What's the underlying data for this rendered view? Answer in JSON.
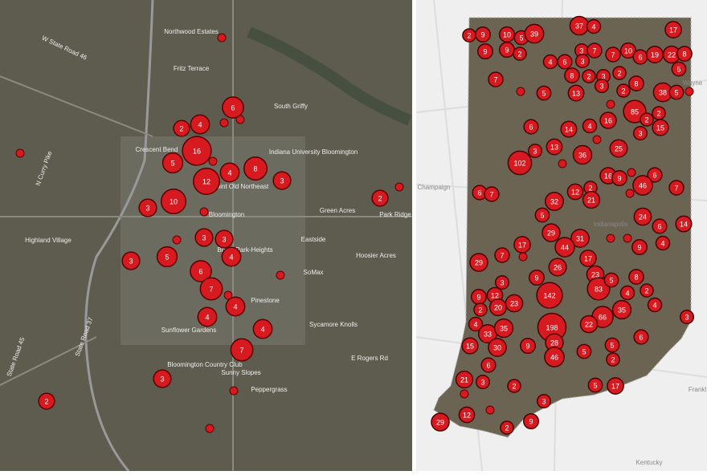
{
  "left_map": {
    "places": [
      "Northwood Estates",
      "Fritz Terrace",
      "South Griffy",
      "Indiana University Bloomington",
      "Crescent Bend",
      "High Point Old Northeast",
      "Bloomington",
      "Green Acres",
      "Park Ridge",
      "Highland Village",
      "Bryan Park-Heights",
      "Eastside",
      "Hoosier Acres",
      "SoMax",
      "Pinestone",
      "Sycamore Knolls",
      "Sunflower Gardens",
      "Bloomington Country Club",
      "E Rogers Rd",
      "Sunny Slopes",
      "Peppergrass",
      "W State Road 46",
      "State Road 37",
      "N Curry Pike",
      "State Road 45"
    ],
    "clusters": [
      6,
      2,
      4,
      16,
      5,
      4,
      8,
      12,
      3,
      10,
      3,
      2,
      3,
      3,
      5,
      3,
      4,
      6,
      7,
      4,
      4,
      4,
      7,
      3,
      2
    ]
  },
  "right_map": {
    "places": [
      "Indianapolis",
      "Champaign",
      "Wayne",
      "Frankl",
      "Kentucky"
    ],
    "clusters": [
      2,
      9,
      10,
      5,
      39,
      37,
      4,
      17,
      9,
      9,
      2,
      3,
      7,
      7,
      10,
      6,
      19,
      22,
      8,
      4,
      6,
      3,
      5,
      8,
      2,
      3,
      2,
      7,
      5,
      13,
      3,
      2,
      8,
      38,
      5,
      85,
      2,
      2,
      15,
      16,
      4,
      14,
      6,
      3,
      102,
      13,
      36,
      25,
      3,
      16,
      9,
      6,
      46,
      7,
      6,
      7,
      32,
      12,
      2,
      21,
      5,
      24,
      6,
      14,
      29,
      31,
      44,
      17,
      7,
      29,
      26,
      17,
      9,
      4,
      23,
      9,
      83,
      142,
      5,
      8,
      2,
      4,
      4,
      3,
      9,
      12,
      2,
      20,
      23,
      35,
      66,
      22,
      198,
      4,
      33,
      35,
      3,
      28,
      6,
      15,
      30,
      9,
      5,
      46,
      5,
      2,
      6,
      21,
      3,
      2,
      5,
      17,
      3,
      12,
      29,
      9,
      2
    ]
  }
}
